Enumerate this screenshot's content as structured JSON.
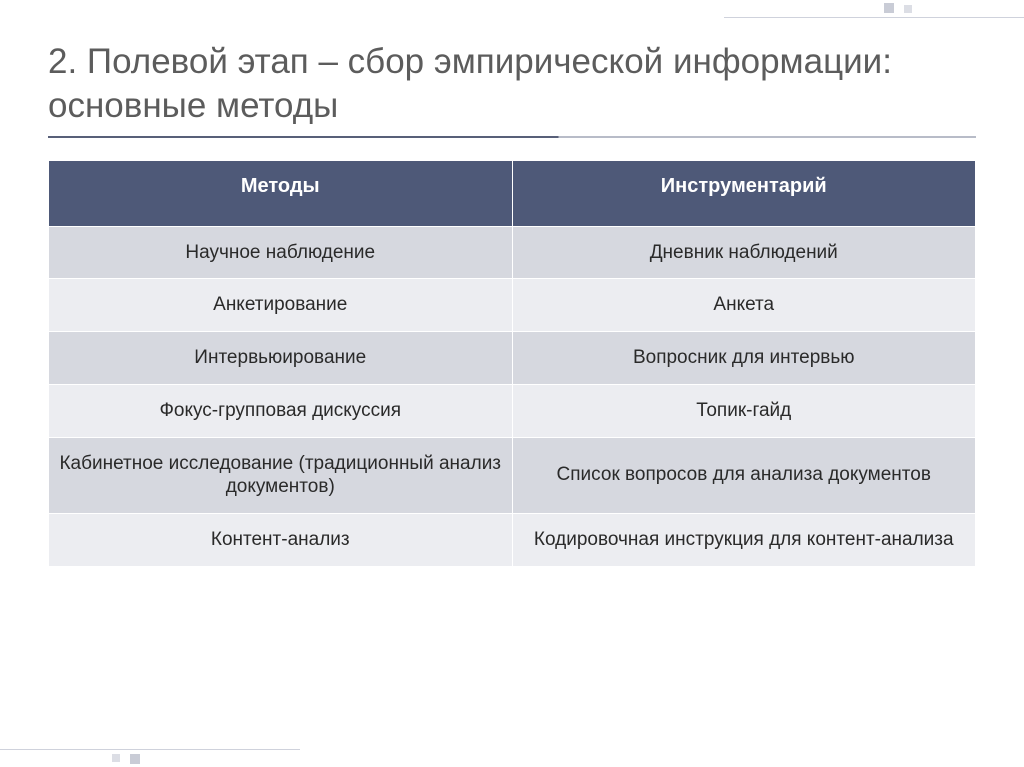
{
  "title": "2. Полевой этап – сбор эмпирической информации: основные методы",
  "colors": {
    "header_bg": "#4e5978",
    "header_text": "#ffffff",
    "row_odd_bg": "#d6d8df",
    "row_even_bg": "#ecedf1",
    "title_color": "#5c5c5c",
    "cell_text": "#2a2a2a",
    "rule_dark": "#586079",
    "rule_light": "#b8bcc8"
  },
  "fonts": {
    "family": "Verdana",
    "title_size_pt": 26,
    "header_size_pt": 15,
    "cell_size_pt": 14
  },
  "table": {
    "columns": [
      "Методы",
      "Инструментарий"
    ],
    "rows": [
      [
        "Научное наблюдение",
        "Дневник наблюдений"
      ],
      [
        "Анкетирование",
        "Анкета"
      ],
      [
        "Интервьюирование",
        "Вопросник для интервью"
      ],
      [
        "Фокус-групповая дискуссия",
        "Топик-гайд"
      ],
      [
        "Кабинетное исследование (традиционный анализ документов)",
        "Список вопросов для анализа документов"
      ],
      [
        "Контент-анализ",
        "Кодировочная инструкция для контент-анализа"
      ]
    ]
  }
}
